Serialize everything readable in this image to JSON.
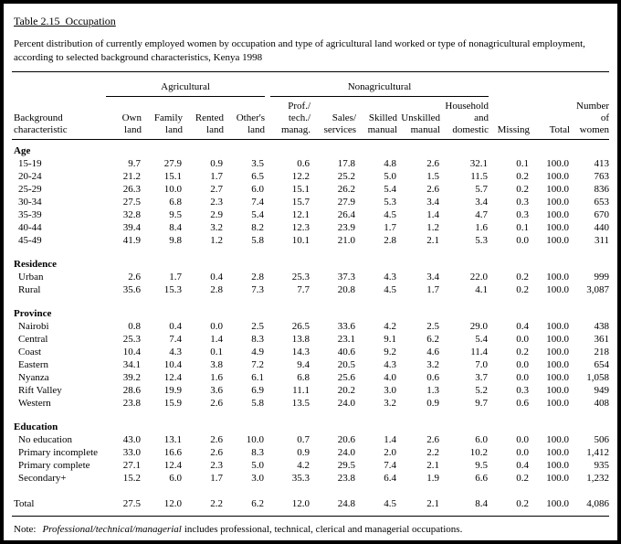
{
  "page": {
    "title": "Table 2.15  Occupation",
    "subtitle": "Percent distribution of currently employed women by occupation and type of agricultural land worked or type of nonagricultural employment,\naccording to selected background characteristics, Kenya 1998",
    "note": {
      "prefix": "Note:",
      "italic_term": "Professional/technical/managerial",
      "text": "includes professional, technical, clerical and managerial occupations."
    }
  },
  "table": {
    "group_headers": [
      {
        "label": "Agricultural",
        "span": 4
      },
      {
        "label": "Nonagricultural",
        "span": 5
      }
    ],
    "columns": [
      "Background\ncharacteristic",
      "Own\nland",
      "Family\nland",
      "Rented\nland",
      "Other's\nland",
      "Prof./\ntech./\nmanag.",
      "Sales/\nservices",
      "Skilled\nmanual",
      "Unskilled\nmanual",
      "Household\nand\ndomestic",
      "Missing",
      "Total",
      "Number\nof\nwomen"
    ],
    "sections": [
      {
        "header": "Age",
        "rows": [
          {
            "label": "15-19",
            "values": [
              "9.7",
              "27.9",
              "0.9",
              "3.5",
              "0.6",
              "17.8",
              "4.8",
              "2.6",
              "32.1",
              "0.1",
              "100.0",
              "413"
            ]
          },
          {
            "label": "20-24",
            "values": [
              "21.2",
              "15.1",
              "1.7",
              "6.5",
              "12.2",
              "25.2",
              "5.0",
              "1.5",
              "11.5",
              "0.2",
              "100.0",
              "763"
            ]
          },
          {
            "label": "25-29",
            "values": [
              "26.3",
              "10.0",
              "2.7",
              "6.0",
              "15.1",
              "26.2",
              "5.4",
              "2.6",
              "5.7",
              "0.2",
              "100.0",
              "836"
            ]
          },
          {
            "label": "30-34",
            "values": [
              "27.5",
              "6.8",
              "2.3",
              "7.4",
              "15.7",
              "27.9",
              "5.3",
              "3.4",
              "3.4",
              "0.3",
              "100.0",
              "653"
            ]
          },
          {
            "label": "35-39",
            "values": [
              "32.8",
              "9.5",
              "2.9",
              "5.4",
              "12.1",
              "26.4",
              "4.5",
              "1.4",
              "4.7",
              "0.3",
              "100.0",
              "670"
            ]
          },
          {
            "label": "40-44",
            "values": [
              "39.4",
              "8.4",
              "3.2",
              "8.2",
              "12.3",
              "23.9",
              "1.7",
              "1.2",
              "1.6",
              "0.1",
              "100.0",
              "440"
            ]
          },
          {
            "label": "45-49",
            "values": [
              "41.9",
              "9.8",
              "1.2",
              "5.8",
              "10.1",
              "21.0",
              "2.8",
              "2.1",
              "5.3",
              "0.0",
              "100.0",
              "311"
            ]
          }
        ]
      },
      {
        "header": "Residence",
        "rows": [
          {
            "label": "Urban",
            "values": [
              "2.6",
              "1.7",
              "0.4",
              "2.8",
              "25.3",
              "37.3",
              "4.3",
              "3.4",
              "22.0",
              "0.2",
              "100.0",
              "999"
            ]
          },
          {
            "label": "Rural",
            "values": [
              "35.6",
              "15.3",
              "2.8",
              "7.3",
              "7.7",
              "20.8",
              "4.5",
              "1.7",
              "4.1",
              "0.2",
              "100.0",
              "3,087"
            ]
          }
        ]
      },
      {
        "header": "Province",
        "rows": [
          {
            "label": "Nairobi",
            "values": [
              "0.8",
              "0.4",
              "0.0",
              "2.5",
              "26.5",
              "33.6",
              "4.2",
              "2.5",
              "29.0",
              "0.4",
              "100.0",
              "438"
            ]
          },
          {
            "label": "Central",
            "values": [
              "25.3",
              "7.4",
              "1.4",
              "8.3",
              "13.8",
              "23.1",
              "9.1",
              "6.2",
              "5.4",
              "0.0",
              "100.0",
              "361"
            ]
          },
          {
            "label": "Coast",
            "values": [
              "10.4",
              "4.3",
              "0.1",
              "4.9",
              "14.3",
              "40.6",
              "9.2",
              "4.6",
              "11.4",
              "0.2",
              "100.0",
              "218"
            ]
          },
          {
            "label": "Eastern",
            "values": [
              "34.1",
              "10.4",
              "3.8",
              "7.2",
              "9.4",
              "20.5",
              "4.3",
              "3.2",
              "7.0",
              "0.0",
              "100.0",
              "654"
            ]
          },
          {
            "label": "Nyanza",
            "values": [
              "39.2",
              "12.4",
              "1.6",
              "6.1",
              "6.8",
              "25.6",
              "4.0",
              "0.6",
              "3.7",
              "0.0",
              "100.0",
              "1,058"
            ]
          },
          {
            "label": "Rift Valley",
            "values": [
              "28.6",
              "19.9",
              "3.6",
              "6.9",
              "11.1",
              "20.2",
              "3.0",
              "1.3",
              "5.2",
              "0.3",
              "100.0",
              "949"
            ]
          },
          {
            "label": "Western",
            "values": [
              "23.8",
              "15.9",
              "2.6",
              "5.8",
              "13.5",
              "24.0",
              "3.2",
              "0.9",
              "9.7",
              "0.6",
              "100.0",
              "408"
            ]
          }
        ]
      },
      {
        "header": "Education",
        "rows": [
          {
            "label": "No education",
            "values": [
              "43.0",
              "13.1",
              "2.6",
              "10.0",
              "0.7",
              "20.6",
              "1.4",
              "2.6",
              "6.0",
              "0.0",
              "100.0",
              "506"
            ]
          },
          {
            "label": "Primary incomplete",
            "values": [
              "33.0",
              "16.6",
              "2.6",
              "8.3",
              "0.9",
              "24.0",
              "2.0",
              "2.2",
              "10.2",
              "0.0",
              "100.0",
              "1,412"
            ]
          },
          {
            "label": "Primary complete",
            "values": [
              "27.1",
              "12.4",
              "2.3",
              "5.0",
              "4.2",
              "29.5",
              "7.4",
              "2.1",
              "9.5",
              "0.4",
              "100.0",
              "935"
            ]
          },
          {
            "label": "Secondary+",
            "values": [
              "15.2",
              "6.0",
              "1.7",
              "3.0",
              "35.3",
              "23.8",
              "6.4",
              "1.9",
              "6.6",
              "0.2",
              "100.0",
              "1,232"
            ]
          }
        ]
      }
    ],
    "total": {
      "label": "Total",
      "values": [
        "27.5",
        "12.0",
        "2.2",
        "6.2",
        "12.0",
        "24.8",
        "4.5",
        "2.1",
        "8.4",
        "0.2",
        "100.0",
        "4,086"
      ]
    }
  }
}
